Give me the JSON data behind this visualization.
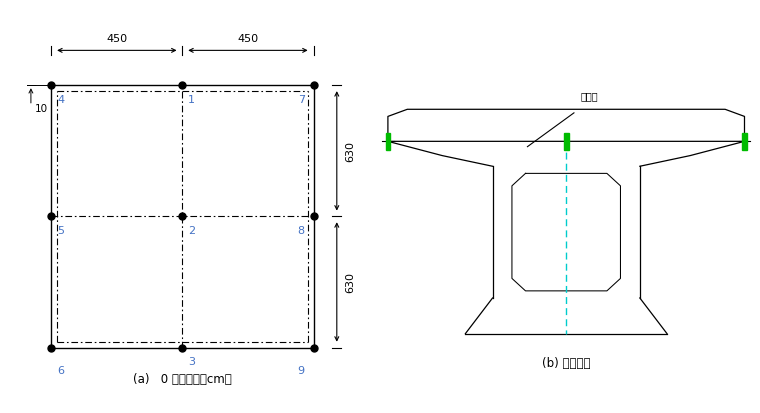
{
  "bg_color": "#ffffff",
  "left_caption": "(a)   0 号块单位：cm）",
  "right_caption": "(b) 支点断面",
  "bridge_axis_label": "桥轴线",
  "node_color": "#4472C4",
  "line_color": "#000000",
  "green_color": "#00BB00",
  "cyan_color": "#00CCCC",
  "dim_color": "#000000"
}
